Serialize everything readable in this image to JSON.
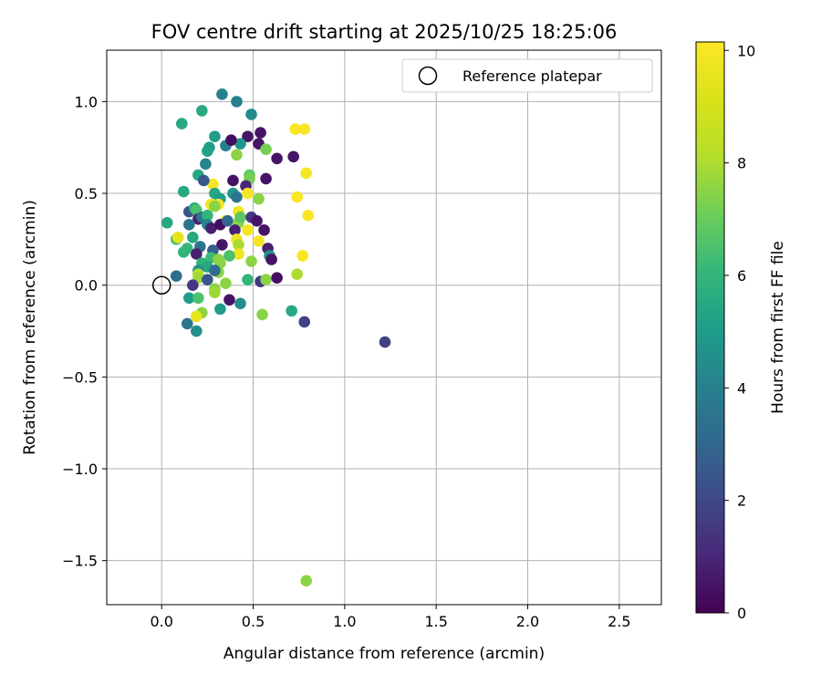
{
  "chart_data": {
    "type": "scatter",
    "title": "FOV centre drift starting at 2025/10/25 18:25:06",
    "xlabel": "Angular distance from reference (arcmin)",
    "ylabel": "Rotation from reference (arcmin)",
    "xlim": [
      -0.3,
      2.73
    ],
    "ylim": [
      -1.74,
      1.28
    ],
    "xticks": [
      "0.0",
      "0.5",
      "1.0",
      "1.5",
      "2.0",
      "2.5"
    ],
    "xtick_values": [
      0.0,
      0.5,
      1.0,
      1.5,
      2.0,
      2.5
    ],
    "yticks": [
      "1.0",
      "0.5",
      "0.0",
      "−0.5",
      "−1.0",
      "−1.5"
    ],
    "ytick_values": [
      1.0,
      0.5,
      0.0,
      -0.5,
      -1.0,
      -1.5
    ],
    "grid": true,
    "legend": {
      "position": "upper-right",
      "label": "Reference platepar"
    },
    "reference_point": {
      "x": 0.0,
      "y": 0.0
    },
    "colorbar": {
      "label": "Hours from first FF file",
      "range": [
        0,
        10.15
      ],
      "ticks": [
        "0",
        "2",
        "4",
        "6",
        "8",
        "10"
      ],
      "tick_values": [
        0,
        2,
        4,
        6,
        8,
        10
      ],
      "colormap": "viridis"
    },
    "points": [
      {
        "x": 0.33,
        "y": 1.04,
        "c": 4.0
      },
      {
        "x": 0.41,
        "y": 1.0,
        "c": 4.0
      },
      {
        "x": 0.49,
        "y": 0.93,
        "c": 4.3
      },
      {
        "x": 0.11,
        "y": 0.88,
        "c": 5.5
      },
      {
        "x": 0.22,
        "y": 0.95,
        "c": 5.5
      },
      {
        "x": 0.73,
        "y": 0.85,
        "c": 10.0
      },
      {
        "x": 0.78,
        "y": 0.85,
        "c": 10.0
      },
      {
        "x": 0.47,
        "y": 0.81,
        "c": 0.5
      },
      {
        "x": 0.54,
        "y": 0.83,
        "c": 0.5
      },
      {
        "x": 0.53,
        "y": 0.77,
        "c": 0.5
      },
      {
        "x": 0.72,
        "y": 0.7,
        "c": 0.5
      },
      {
        "x": 0.63,
        "y": 0.69,
        "c": 0.5
      },
      {
        "x": 0.57,
        "y": 0.74,
        "c": 7.2
      },
      {
        "x": 0.41,
        "y": 0.71,
        "c": 7.5
      },
      {
        "x": 0.29,
        "y": 0.81,
        "c": 5.0
      },
      {
        "x": 0.26,
        "y": 0.75,
        "c": 5.0
      },
      {
        "x": 0.25,
        "y": 0.73,
        "c": 5.2
      },
      {
        "x": 0.35,
        "y": 0.76,
        "c": 4.0
      },
      {
        "x": 0.43,
        "y": 0.77,
        "c": 4.8
      },
      {
        "x": 0.24,
        "y": 0.66,
        "c": 4.2
      },
      {
        "x": 0.38,
        "y": 0.79,
        "c": 0.3
      },
      {
        "x": 0.2,
        "y": 0.6,
        "c": 5.5
      },
      {
        "x": 0.48,
        "y": 0.6,
        "c": 6.8
      },
      {
        "x": 0.48,
        "y": 0.58,
        "c": 7.2
      },
      {
        "x": 0.79,
        "y": 0.61,
        "c": 9.9
      },
      {
        "x": 0.28,
        "y": 0.55,
        "c": 9.9
      },
      {
        "x": 0.39,
        "y": 0.57,
        "c": 0.5
      },
      {
        "x": 0.57,
        "y": 0.58,
        "c": 0.5
      },
      {
        "x": 0.23,
        "y": 0.57,
        "c": 2.5
      },
      {
        "x": 0.46,
        "y": 0.54,
        "c": 1.0
      },
      {
        "x": 0.12,
        "y": 0.51,
        "c": 5.5
      },
      {
        "x": 0.29,
        "y": 0.5,
        "c": 5.5
      },
      {
        "x": 0.39,
        "y": 0.5,
        "c": 4.8
      },
      {
        "x": 0.41,
        "y": 0.48,
        "c": 3.5
      },
      {
        "x": 0.32,
        "y": 0.47,
        "c": 5.0
      },
      {
        "x": 0.53,
        "y": 0.47,
        "c": 7.5
      },
      {
        "x": 0.47,
        "y": 0.5,
        "c": 10.0
      },
      {
        "x": 0.74,
        "y": 0.48,
        "c": 10.0
      },
      {
        "x": 0.27,
        "y": 0.44,
        "c": 9.8
      },
      {
        "x": 0.31,
        "y": 0.44,
        "c": 9.9
      },
      {
        "x": 0.29,
        "y": 0.43,
        "c": 7.5
      },
      {
        "x": 0.42,
        "y": 0.4,
        "c": 9.8
      },
      {
        "x": 0.8,
        "y": 0.38,
        "c": 10.0
      },
      {
        "x": 0.35,
        "y": 0.35,
        "c": 10.0
      },
      {
        "x": 0.15,
        "y": 0.4,
        "c": 2.5
      },
      {
        "x": 0.18,
        "y": 0.42,
        "c": 5.7
      },
      {
        "x": 0.19,
        "y": 0.41,
        "c": 6.5
      },
      {
        "x": 0.2,
        "y": 0.36,
        "c": 0.8
      },
      {
        "x": 0.22,
        "y": 0.37,
        "c": 3.5
      },
      {
        "x": 0.25,
        "y": 0.38,
        "c": 6.0
      },
      {
        "x": 0.25,
        "y": 0.33,
        "c": 4.2
      },
      {
        "x": 0.27,
        "y": 0.31,
        "c": 0.8
      },
      {
        "x": 0.32,
        "y": 0.33,
        "c": 0.3
      },
      {
        "x": 0.36,
        "y": 0.35,
        "c": 3.0
      },
      {
        "x": 0.42,
        "y": 0.34,
        "c": 7.5
      },
      {
        "x": 0.43,
        "y": 0.37,
        "c": 6.8
      },
      {
        "x": 0.49,
        "y": 0.37,
        "c": 1.5
      },
      {
        "x": 0.52,
        "y": 0.35,
        "c": 0.5
      },
      {
        "x": 0.03,
        "y": 0.34,
        "c": 5.5
      },
      {
        "x": 0.15,
        "y": 0.33,
        "c": 3.5
      },
      {
        "x": 0.56,
        "y": 0.3,
        "c": 0.5
      },
      {
        "x": 0.47,
        "y": 0.3,
        "c": 10.0
      },
      {
        "x": 0.4,
        "y": 0.3,
        "c": 0.8
      },
      {
        "x": 0.41,
        "y": 0.25,
        "c": 9.8
      },
      {
        "x": 0.53,
        "y": 0.24,
        "c": 10.0
      },
      {
        "x": 0.42,
        "y": 0.22,
        "c": 8.0
      },
      {
        "x": 0.08,
        "y": 0.25,
        "c": 6.5
      },
      {
        "x": 0.09,
        "y": 0.26,
        "c": 9.5
      },
      {
        "x": 0.17,
        "y": 0.26,
        "c": 5.5
      },
      {
        "x": 0.33,
        "y": 0.22,
        "c": 0.5
      },
      {
        "x": 0.21,
        "y": 0.21,
        "c": 3.5
      },
      {
        "x": 0.14,
        "y": 0.2,
        "c": 6.0
      },
      {
        "x": 0.58,
        "y": 0.2,
        "c": 0.8
      },
      {
        "x": 0.28,
        "y": 0.19,
        "c": 2.8
      },
      {
        "x": 0.12,
        "y": 0.18,
        "c": 6.0
      },
      {
        "x": 0.19,
        "y": 0.17,
        "c": 0.8
      },
      {
        "x": 0.27,
        "y": 0.15,
        "c": 6.2
      },
      {
        "x": 0.42,
        "y": 0.17,
        "c": 9.8
      },
      {
        "x": 0.59,
        "y": 0.16,
        "c": 4.5
      },
      {
        "x": 0.6,
        "y": 0.14,
        "c": 0.5
      },
      {
        "x": 0.77,
        "y": 0.16,
        "c": 10.0
      },
      {
        "x": 0.37,
        "y": 0.16,
        "c": 6.5
      },
      {
        "x": 0.31,
        "y": 0.14,
        "c": 7.5
      },
      {
        "x": 0.32,
        "y": 0.12,
        "c": 7.5
      },
      {
        "x": 0.22,
        "y": 0.12,
        "c": 6.0
      },
      {
        "x": 0.25,
        "y": 0.1,
        "c": 5.5
      },
      {
        "x": 0.49,
        "y": 0.13,
        "c": 7.5
      },
      {
        "x": 0.2,
        "y": 0.08,
        "c": 4.5
      },
      {
        "x": 0.2,
        "y": 0.06,
        "c": 8.2
      },
      {
        "x": 0.31,
        "y": 0.07,
        "c": 7.5
      },
      {
        "x": 0.29,
        "y": 0.08,
        "c": 3.2
      },
      {
        "x": 0.2,
        "y": 0.04,
        "c": 7.8
      },
      {
        "x": 0.08,
        "y": 0.05,
        "c": 3.2
      },
      {
        "x": 0.25,
        "y": 0.03,
        "c": 2.5
      },
      {
        "x": 0.47,
        "y": 0.03,
        "c": 6.0
      },
      {
        "x": 0.54,
        "y": 0.02,
        "c": 1.5
      },
      {
        "x": 0.57,
        "y": 0.03,
        "c": 7.5
      },
      {
        "x": 0.63,
        "y": 0.04,
        "c": 0.3
      },
      {
        "x": 0.74,
        "y": 0.06,
        "c": 8.0
      },
      {
        "x": 0.35,
        "y": 0.01,
        "c": 7.5
      },
      {
        "x": 0.29,
        "y": -0.02,
        "c": 7.5
      },
      {
        "x": 0.17,
        "y": 0.0,
        "c": 1.5
      },
      {
        "x": 0.15,
        "y": -0.07,
        "c": 5.0
      },
      {
        "x": 0.2,
        "y": -0.07,
        "c": 6.5
      },
      {
        "x": 0.29,
        "y": -0.04,
        "c": 7.8
      },
      {
        "x": 0.37,
        "y": -0.08,
        "c": 0.5
      },
      {
        "x": 0.43,
        "y": -0.1,
        "c": 4.5
      },
      {
        "x": 0.22,
        "y": -0.15,
        "c": 7.5
      },
      {
        "x": 0.19,
        "y": -0.17,
        "c": 9.5
      },
      {
        "x": 0.32,
        "y": -0.13,
        "c": 5.0
      },
      {
        "x": 0.14,
        "y": -0.21,
        "c": 3.5
      },
      {
        "x": 0.19,
        "y": -0.25,
        "c": 4.5
      },
      {
        "x": 0.55,
        "y": -0.16,
        "c": 7.5
      },
      {
        "x": 0.71,
        "y": -0.14,
        "c": 5.5
      },
      {
        "x": 0.78,
        "y": -0.2,
        "c": 1.8
      },
      {
        "x": 1.22,
        "y": -0.31,
        "c": 1.8
      },
      {
        "x": 0.79,
        "y": -1.61,
        "c": 7.5
      }
    ]
  }
}
